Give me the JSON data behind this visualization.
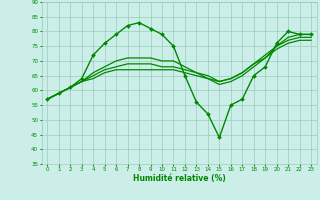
{
  "xlabel": "Humidité relative (%)",
  "bg_color": "#cceee8",
  "grid_color": "#99ccbb",
  "line_color": "#008800",
  "xlim": [
    -0.5,
    23.5
  ],
  "ylim": [
    35,
    90
  ],
  "yticks": [
    35,
    40,
    45,
    50,
    55,
    60,
    65,
    70,
    75,
    80,
    85,
    90
  ],
  "xticks": [
    0,
    1,
    2,
    3,
    4,
    5,
    6,
    7,
    8,
    9,
    10,
    11,
    12,
    13,
    14,
    15,
    16,
    17,
    18,
    19,
    20,
    21,
    22,
    23
  ],
  "curves": [
    {
      "x": [
        0,
        1,
        2,
        3,
        4,
        5,
        6,
        7,
        8,
        9,
        10,
        11,
        12,
        13,
        14,
        15,
        16,
        17,
        18,
        19,
        20,
        21,
        22,
        23
      ],
      "y": [
        57,
        59,
        61,
        64,
        72,
        76,
        79,
        82,
        83,
        81,
        79,
        75,
        65,
        56,
        52,
        44,
        55,
        57,
        65,
        68,
        76,
        80,
        79,
        79
      ],
      "has_markers": true,
      "linewidth": 1.0
    },
    {
      "x": [
        0,
        1,
        2,
        3,
        4,
        5,
        6,
        7,
        8,
        9,
        10,
        11,
        12,
        13,
        14,
        15,
        16,
        17,
        18,
        19,
        20,
        21,
        22,
        23
      ],
      "y": [
        57,
        59,
        61,
        63,
        66,
        68,
        70,
        71,
        71,
        71,
        70,
        70,
        68,
        66,
        64,
        62,
        63,
        65,
        68,
        71,
        75,
        78,
        79,
        79
      ],
      "has_markers": false,
      "linewidth": 0.9
    },
    {
      "x": [
        0,
        1,
        2,
        3,
        4,
        5,
        6,
        7,
        8,
        9,
        10,
        11,
        12,
        13,
        14,
        15,
        16,
        17,
        18,
        19,
        20,
        21,
        22,
        23
      ],
      "y": [
        57,
        59,
        61,
        63,
        65,
        67,
        68,
        69,
        69,
        69,
        68,
        68,
        67,
        66,
        65,
        63,
        64,
        66,
        69,
        72,
        75,
        77,
        78,
        78
      ],
      "has_markers": false,
      "linewidth": 0.9
    },
    {
      "x": [
        0,
        1,
        2,
        3,
        4,
        5,
        6,
        7,
        8,
        9,
        10,
        11,
        12,
        13,
        14,
        15,
        16,
        17,
        18,
        19,
        20,
        21,
        22,
        23
      ],
      "y": [
        57,
        59,
        61,
        63,
        64,
        66,
        67,
        67,
        67,
        67,
        67,
        67,
        66,
        65,
        64,
        63,
        64,
        66,
        69,
        71,
        74,
        76,
        77,
        77
      ],
      "has_markers": false,
      "linewidth": 0.9
    }
  ]
}
